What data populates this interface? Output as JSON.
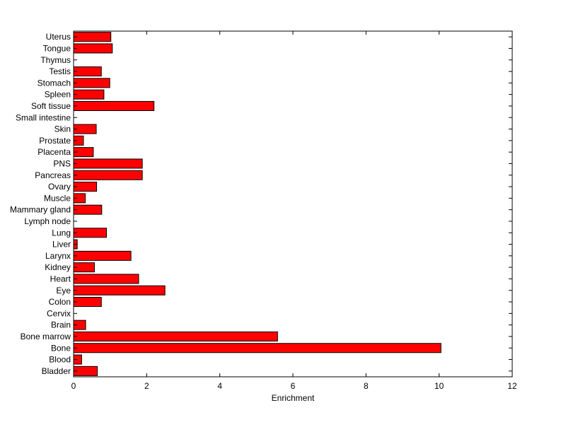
{
  "chart_data": {
    "type": "bar",
    "orientation": "horizontal",
    "title": "",
    "xlabel": "Enrichment",
    "ylabel": "",
    "xlim": [
      0,
      12
    ],
    "xticks": [
      0,
      2,
      4,
      6,
      8,
      10,
      12
    ],
    "grid": false,
    "legend": "none",
    "bar_color": "#ff0000",
    "categories": [
      "Bladder",
      "Blood",
      "Bone",
      "Bone marrow",
      "Brain",
      "Cervix",
      "Colon",
      "Eye",
      "Heart",
      "Kidney",
      "Larynx",
      "Liver",
      "Lung",
      "Lymph node",
      "Mammary gland",
      "Muscle",
      "Ovary",
      "Pancreas",
      "PNS",
      "Placenta",
      "Prostate",
      "Skin",
      "Small intestine",
      "Soft tissue",
      "Spleen",
      "Stomach",
      "Testis",
      "Thymus",
      "Tongue",
      "Uterus"
    ],
    "values": [
      0.65,
      0.22,
      10.05,
      5.58,
      0.33,
      0,
      0.76,
      2.5,
      1.78,
      0.57,
      1.57,
      0.1,
      0.9,
      0,
      0.77,
      0.32,
      0.63,
      1.88,
      1.88,
      0.54,
      0.27,
      0.62,
      0,
      2.2,
      0.83,
      0.99,
      0.76,
      0,
      1.06,
      1.02
    ]
  }
}
